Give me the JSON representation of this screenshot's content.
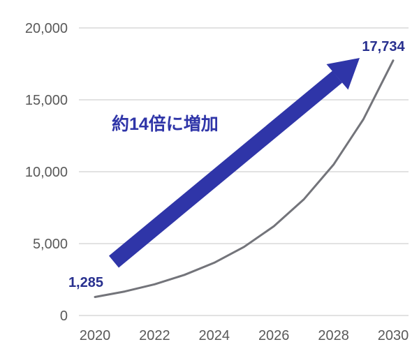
{
  "chart_data": {
    "type": "line",
    "title": "",
    "xlabel": "",
    "ylabel": "",
    "x": [
      2020,
      2021,
      2022,
      2023,
      2024,
      2025,
      2026,
      2027,
      2028,
      2029,
      2030
    ],
    "series": [
      {
        "name": "forecast-line",
        "color": "#73747A",
        "values": [
          1285,
          1671,
          2172,
          2824,
          3672,
          4774,
          6207,
          8070,
          10492,
          13641,
          17734
        ]
      }
    ],
    "xlim": [
      2020,
      2030
    ],
    "ylim": [
      0,
      20000
    ],
    "grid": true,
    "legend": "none",
    "x_ticks": [
      {
        "x": 2020,
        "label": "2020"
      },
      {
        "x": 2022,
        "label": "2022"
      },
      {
        "x": 2024,
        "label": "2024"
      },
      {
        "x": 2026,
        "label": "2026"
      },
      {
        "x": 2028,
        "label": "2028"
      },
      {
        "x": 2030,
        "label": "2030"
      }
    ],
    "y_ticks": [
      {
        "value": 0,
        "label": "0"
      },
      {
        "value": 5000,
        "label": "5,000"
      },
      {
        "value": 10000,
        "label": "10,000"
      },
      {
        "value": 15000,
        "label": "15,000"
      },
      {
        "value": 20000,
        "label": "20,000"
      }
    ],
    "data_labels": [
      {
        "text": "1,285",
        "x": 2020,
        "value": 1285,
        "color": "#28308F"
      },
      {
        "text": "17,734",
        "x": 2030,
        "value": 17734,
        "color": "#28308F"
      }
    ],
    "annotations": [
      {
        "type": "text",
        "text": "約14倍に増加",
        "color": "#2F35A8"
      },
      {
        "type": "arrow",
        "color": "#2F35A8"
      }
    ]
  },
  "colors": {
    "background": "#FFFFFF",
    "gridline": "#D9D9D9",
    "axis_label": "#595959",
    "series_line": "#73747A",
    "arrow": "#2F35A8",
    "data_label": "#28308F"
  }
}
